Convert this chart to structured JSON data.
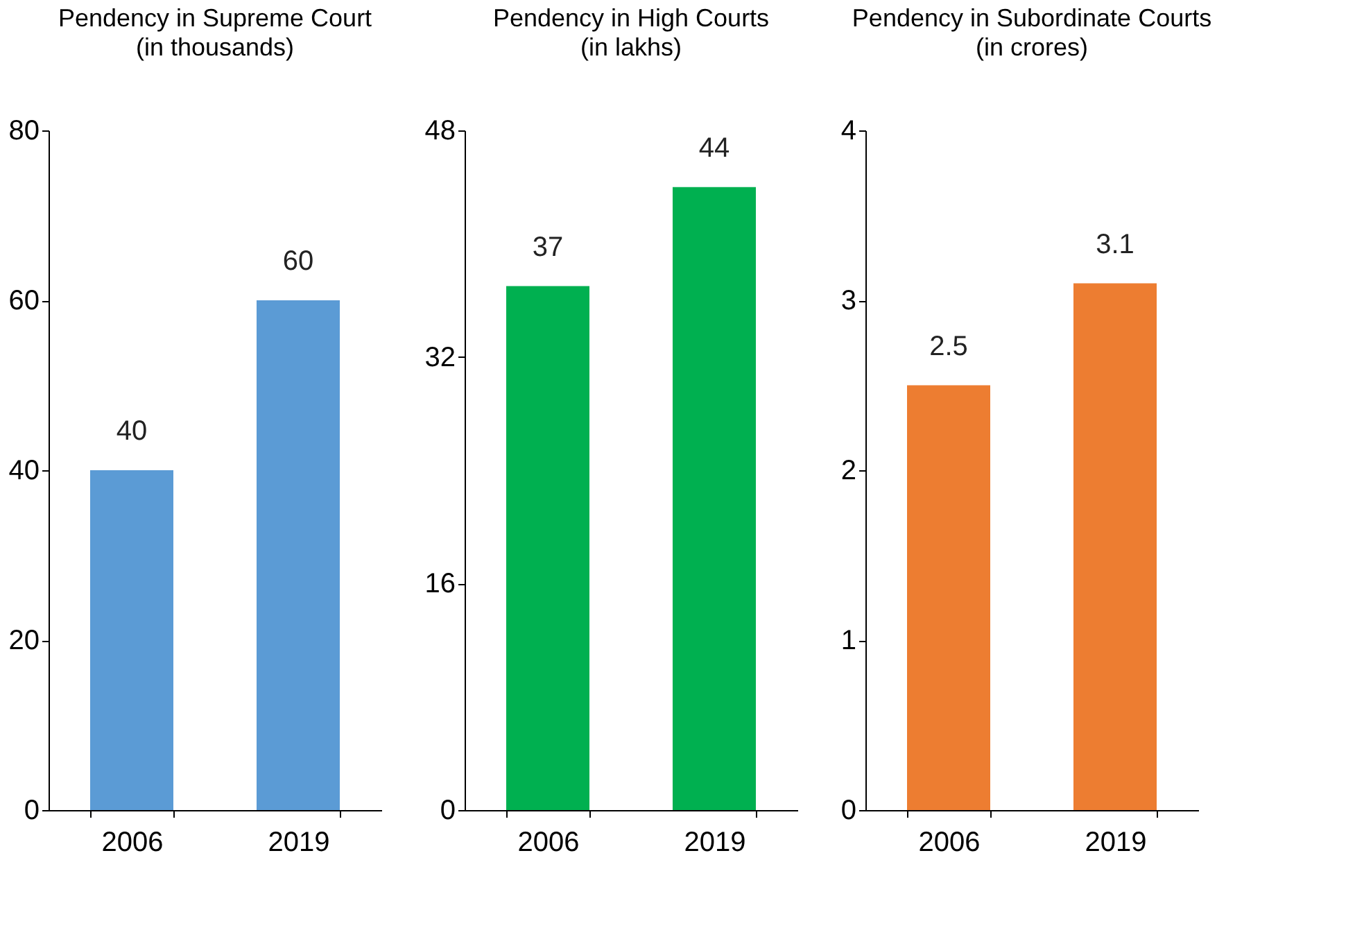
{
  "chart_data": [
    {
      "type": "bar",
      "title": "Pendency in Supreme Court",
      "subtitle": "(in thousands)",
      "categories": [
        "2006",
        "2019"
      ],
      "values": [
        40,
        60
      ],
      "color": "#5b9bd5",
      "ylim": [
        0,
        80
      ],
      "yticks": [
        0,
        20,
        40,
        60,
        80
      ],
      "data_labels": true,
      "grid": false
    },
    {
      "type": "bar",
      "title": "Pendency in High Courts",
      "subtitle": "(in lakhs)",
      "categories": [
        "2006",
        "2019"
      ],
      "values": [
        37,
        44
      ],
      "color": "#00b050",
      "ylim": [
        0,
        48
      ],
      "yticks": [
        0,
        16,
        32,
        48
      ],
      "data_labels": true,
      "grid": false
    },
    {
      "type": "bar",
      "title": "Pendency in Subordinate Courts",
      "subtitle": "(in crores)",
      "categories": [
        "2006",
        "2019"
      ],
      "values": [
        2.5,
        3.1
      ],
      "color": "#ed7d31",
      "ylim": [
        0,
        4
      ],
      "yticks": [
        0,
        1,
        2,
        3,
        4
      ],
      "data_labels": true,
      "grid": false
    }
  ]
}
